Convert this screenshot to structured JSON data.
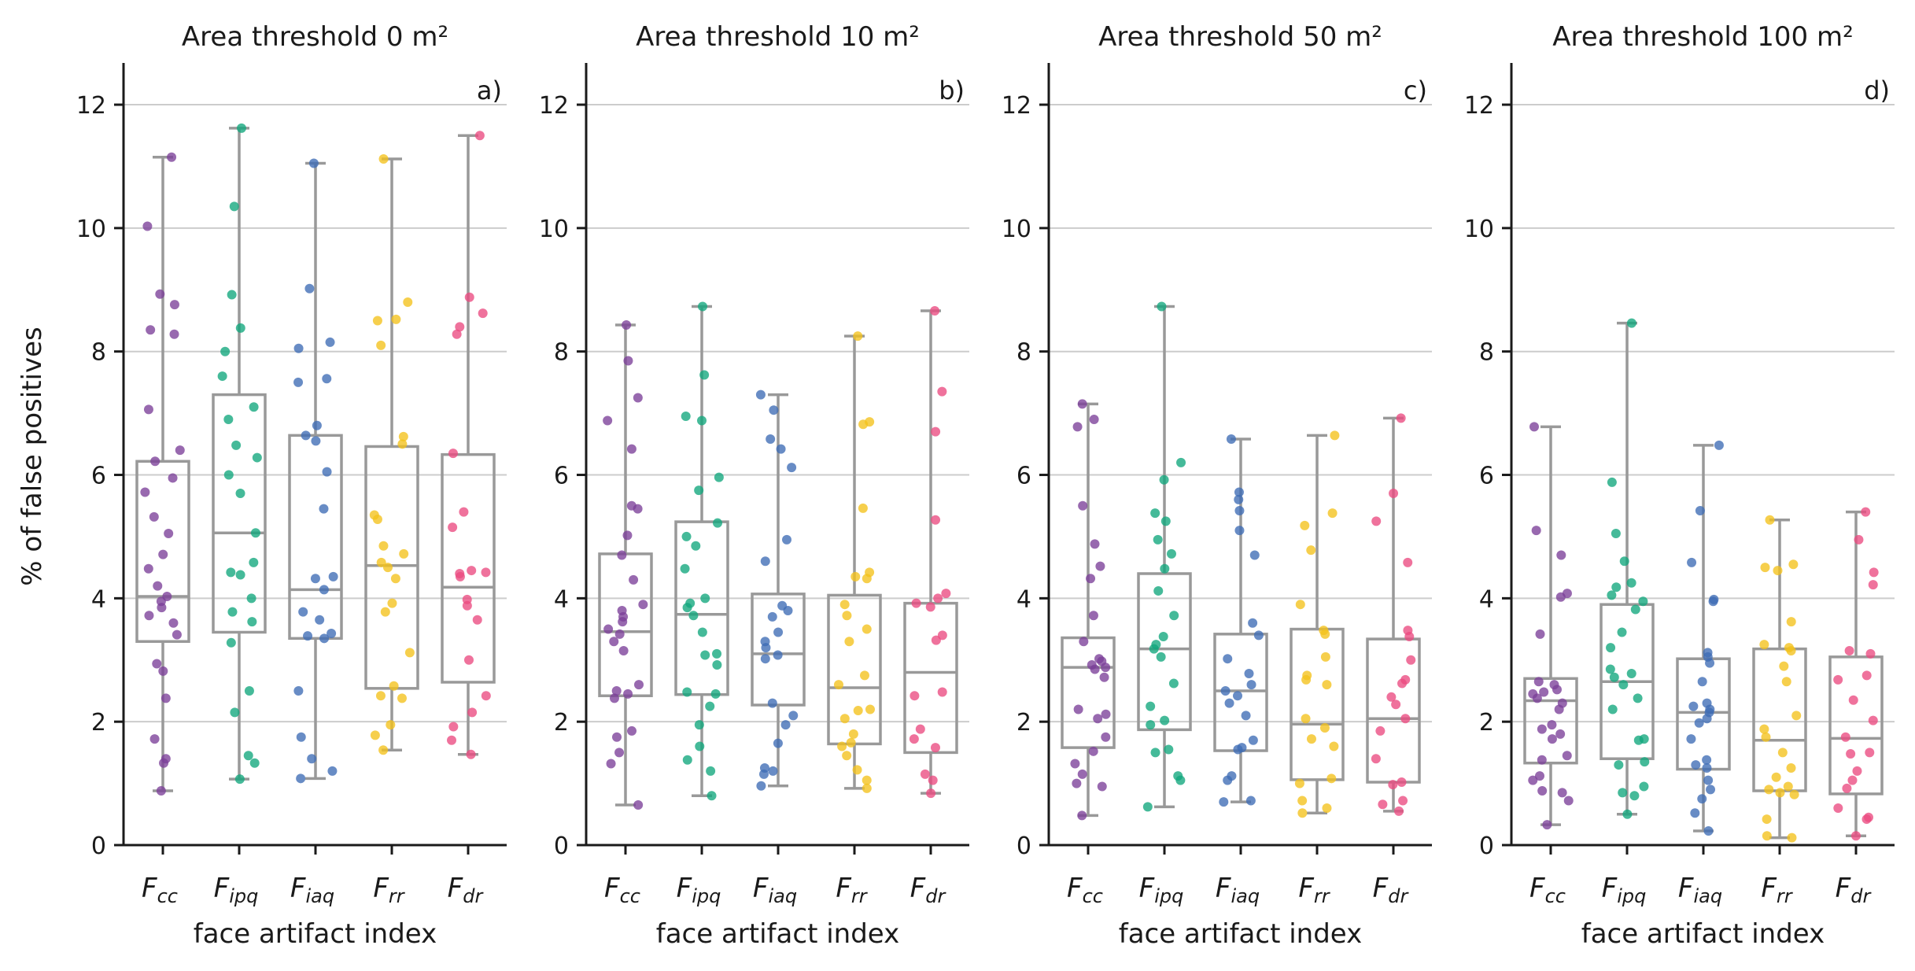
{
  "colors": {
    "Fcc": "#7b3f99",
    "Fipq": "#11a77c",
    "Fiaq": "#3d6cb5",
    "Frr": "#f3c11b",
    "Fdr": "#ea4a80",
    "box": "#999999",
    "grid": "#cccccc",
    "axis": "#1a1a1a"
  },
  "figure": {
    "ylabel": "% of false positives",
    "xlabel": "face artifact index",
    "categories": [
      {
        "key": "Fcc",
        "main": "F",
        "sub": "cc"
      },
      {
        "key": "Fipq",
        "main": "F",
        "sub": "ipq"
      },
      {
        "key": "Fiaq",
        "main": "F",
        "sub": "iaq"
      },
      {
        "key": "Frr",
        "main": "F",
        "sub": "rr"
      },
      {
        "key": "Fdr",
        "main": "F",
        "sub": "dr"
      }
    ],
    "ylim": [
      0,
      12.6
    ],
    "yticks": [
      0,
      2,
      4,
      6,
      8,
      10,
      12
    ],
    "grid": "horizontal"
  },
  "chart_data": [
    {
      "type": "box-strip",
      "title": "Area threshold 0 m²",
      "panel": "a)",
      "boxes": [
        {
          "min": 0.88,
          "q1": 3.3,
          "median": 4.03,
          "q3": 6.22,
          "max": 11.15
        },
        {
          "min": 1.07,
          "q1": 3.45,
          "median": 5.06,
          "q3": 7.3,
          "max": 11.62
        },
        {
          "min": 1.08,
          "q1": 3.35,
          "median": 4.14,
          "q3": 6.64,
          "max": 11.05
        },
        {
          "min": 1.54,
          "q1": 2.54,
          "median": 4.53,
          "q3": 6.46,
          "max": 11.12
        },
        {
          "min": 1.47,
          "q1": 2.64,
          "median": 4.18,
          "q3": 6.33,
          "max": 11.5
        }
      ],
      "points": [
        [
          11.15,
          10.03,
          8.93,
          8.76,
          8.35,
          8.28,
          7.06,
          6.4,
          6.22,
          5.95,
          5.72,
          5.32,
          5.05,
          4.71,
          4.48,
          4.2,
          4.03,
          3.95,
          3.85,
          3.72,
          3.6,
          3.41,
          2.94,
          2.82,
          2.38,
          1.72,
          1.4,
          1.33,
          0.88
        ],
        [
          11.62,
          10.35,
          8.92,
          8.38,
          8.0,
          7.6,
          7.1,
          6.9,
          6.48,
          6.28,
          6.0,
          5.7,
          5.06,
          4.58,
          4.42,
          4.38,
          4.0,
          3.78,
          3.62,
          3.28,
          2.5,
          2.15,
          1.45,
          1.33,
          1.07
        ],
        [
          11.05,
          9.02,
          8.15,
          8.05,
          7.56,
          7.5,
          6.8,
          6.64,
          6.55,
          6.05,
          5.45,
          4.35,
          4.32,
          4.14,
          3.78,
          3.65,
          3.43,
          3.39,
          3.35,
          2.5,
          1.75,
          1.4,
          1.2,
          1.08
        ],
        [
          11.12,
          8.8,
          8.52,
          8.5,
          8.1,
          6.62,
          6.5,
          5.35,
          5.28,
          4.85,
          4.72,
          4.58,
          4.5,
          4.32,
          3.92,
          3.78,
          3.12,
          2.58,
          2.42,
          2.38,
          1.95,
          1.78,
          1.54
        ],
        [
          11.5,
          8.88,
          8.62,
          8.4,
          8.28,
          6.35,
          5.4,
          5.15,
          4.45,
          4.4,
          4.42,
          4.35,
          3.98,
          3.88,
          3.65,
          3.0,
          2.42,
          2.15,
          1.92,
          1.7,
          1.47
        ]
      ]
    },
    {
      "type": "box-strip",
      "title": "Area threshold 10 m²",
      "panel": "b)",
      "boxes": [
        {
          "min": 0.65,
          "q1": 2.42,
          "median": 3.46,
          "q3": 4.72,
          "max": 8.43
        },
        {
          "min": 0.8,
          "q1": 2.44,
          "median": 3.74,
          "q3": 5.24,
          "max": 8.73
        },
        {
          "min": 0.96,
          "q1": 2.27,
          "median": 3.1,
          "q3": 4.07,
          "max": 7.3
        },
        {
          "min": 0.92,
          "q1": 1.64,
          "median": 2.55,
          "q3": 4.05,
          "max": 8.25
        },
        {
          "min": 0.84,
          "q1": 1.5,
          "median": 2.8,
          "q3": 3.92,
          "max": 8.66
        }
      ],
      "points": [
        [
          8.43,
          7.85,
          7.25,
          6.88,
          6.42,
          5.5,
          5.45,
          5.02,
          4.7,
          4.3,
          3.9,
          3.8,
          3.7,
          3.62,
          3.5,
          3.42,
          3.3,
          3.15,
          2.6,
          2.5,
          2.45,
          2.38,
          1.85,
          1.75,
          1.5,
          1.32,
          0.65
        ],
        [
          8.73,
          7.62,
          6.95,
          6.88,
          5.96,
          5.75,
          5.22,
          5.0,
          4.85,
          4.48,
          4.0,
          3.92,
          3.85,
          3.72,
          3.45,
          3.1,
          3.08,
          2.92,
          2.48,
          2.45,
          2.25,
          1.95,
          1.6,
          1.38,
          1.2,
          0.8
        ],
        [
          7.3,
          7.05,
          6.58,
          6.42,
          6.12,
          4.95,
          4.6,
          3.88,
          3.8,
          3.7,
          3.45,
          3.3,
          3.2,
          3.08,
          3.02,
          2.3,
          2.1,
          1.95,
          1.65,
          1.25,
          1.2,
          1.15,
          0.96
        ],
        [
          8.25,
          6.86,
          6.82,
          5.46,
          4.35,
          4.32,
          4.42,
          3.9,
          3.72,
          3.5,
          3.3,
          2.75,
          2.6,
          2.2,
          2.18,
          2.05,
          1.8,
          1.66,
          1.6,
          1.45,
          1.22,
          1.05,
          0.92
        ],
        [
          8.66,
          7.35,
          6.7,
          5.27,
          4.08,
          4.0,
          3.92,
          3.86,
          3.4,
          3.32,
          2.48,
          2.42,
          1.88,
          1.72,
          1.58,
          1.15,
          1.05,
          0.84
        ]
      ]
    },
    {
      "type": "box-strip",
      "title": "Area threshold 50 m²",
      "panel": "c)",
      "boxes": [
        {
          "min": 0.48,
          "q1": 1.58,
          "median": 2.88,
          "q3": 3.36,
          "max": 7.15
        },
        {
          "min": 0.62,
          "q1": 1.87,
          "median": 3.18,
          "q3": 4.4,
          "max": 8.73
        },
        {
          "min": 0.7,
          "q1": 1.53,
          "median": 2.5,
          "q3": 3.42,
          "max": 6.58
        },
        {
          "min": 0.52,
          "q1": 1.06,
          "median": 1.96,
          "q3": 3.5,
          "max": 6.64
        },
        {
          "min": 0.55,
          "q1": 1.02,
          "median": 2.05,
          "q3": 3.34,
          "max": 6.92
        }
      ],
      "points": [
        [
          7.15,
          6.9,
          6.78,
          5.5,
          4.88,
          4.52,
          4.32,
          3.72,
          3.3,
          3.02,
          2.98,
          2.92,
          2.88,
          2.85,
          2.72,
          2.2,
          2.12,
          2.05,
          1.75,
          1.52,
          1.32,
          1.15,
          1.0,
          0.95,
          0.48
        ],
        [
          8.73,
          6.2,
          5.92,
          5.38,
          5.25,
          4.95,
          4.72,
          4.48,
          4.12,
          3.72,
          3.38,
          3.25,
          3.18,
          3.05,
          2.62,
          2.25,
          2.02,
          1.95,
          1.55,
          1.5,
          1.12,
          1.05,
          0.62
        ],
        [
          6.58,
          5.72,
          5.6,
          5.42,
          5.1,
          4.7,
          3.6,
          3.4,
          3.02,
          2.78,
          2.6,
          2.5,
          2.42,
          2.3,
          2.1,
          1.7,
          1.58,
          1.55,
          1.12,
          1.05,
          0.72,
          0.7
        ],
        [
          6.64,
          5.38,
          5.18,
          4.78,
          3.9,
          3.48,
          3.42,
          3.05,
          2.75,
          2.68,
          2.6,
          2.05,
          1.9,
          1.72,
          1.6,
          1.08,
          1.0,
          0.72,
          0.6,
          0.52
        ],
        [
          6.92,
          5.7,
          5.25,
          4.58,
          3.48,
          3.38,
          3.0,
          2.68,
          2.62,
          2.4,
          2.28,
          2.05,
          1.85,
          1.4,
          1.02,
          0.98,
          0.72,
          0.66,
          0.55
        ]
      ]
    },
    {
      "type": "box-strip",
      "title": "Area threshold 100 m²",
      "panel": "d)",
      "boxes": [
        {
          "min": 0.33,
          "q1": 1.33,
          "median": 2.34,
          "q3": 2.7,
          "max": 6.78
        },
        {
          "min": 0.5,
          "q1": 1.4,
          "median": 2.65,
          "q3": 3.9,
          "max": 8.46
        },
        {
          "min": 0.23,
          "q1": 1.23,
          "median": 2.15,
          "q3": 3.02,
          "max": 6.48
        },
        {
          "min": 0.12,
          "q1": 0.88,
          "median": 1.7,
          "q3": 3.18,
          "max": 5.27
        },
        {
          "min": 0.15,
          "q1": 0.83,
          "median": 1.73,
          "q3": 3.05,
          "max": 5.4
        }
      ],
      "points": [
        [
          6.78,
          5.1,
          4.7,
          4.08,
          4.02,
          3.42,
          2.65,
          2.6,
          2.52,
          2.48,
          2.45,
          2.38,
          2.3,
          2.2,
          1.95,
          1.88,
          1.8,
          1.72,
          1.45,
          1.38,
          1.12,
          1.05,
          0.88,
          0.85,
          0.72,
          0.33
        ],
        [
          8.46,
          5.88,
          5.05,
          4.6,
          4.25,
          4.18,
          4.05,
          3.95,
          3.82,
          3.45,
          3.2,
          2.85,
          2.78,
          2.72,
          2.6,
          2.38,
          2.2,
          1.72,
          1.7,
          1.35,
          1.3,
          0.95,
          0.85,
          0.8,
          0.5
        ],
        [
          6.48,
          5.42,
          4.58,
          3.98,
          3.95,
          3.12,
          3.05,
          2.95,
          2.65,
          2.3,
          2.25,
          2.2,
          2.15,
          2.05,
          1.98,
          1.72,
          1.38,
          1.3,
          1.25,
          1.05,
          0.9,
          0.75,
          0.52,
          0.23
        ],
        [
          5.27,
          4.55,
          4.5,
          4.45,
          3.62,
          3.25,
          3.2,
          3.15,
          2.9,
          2.65,
          2.1,
          1.88,
          1.75,
          1.5,
          1.25,
          1.1,
          0.95,
          0.9,
          0.85,
          0.82,
          0.42,
          0.15,
          0.12
        ],
        [
          5.4,
          4.95,
          4.42,
          4.22,
          3.15,
          3.1,
          2.75,
          2.68,
          2.35,
          2.02,
          1.75,
          1.5,
          1.48,
          1.2,
          1.05,
          0.92,
          0.6,
          0.45,
          0.42,
          0.15
        ]
      ]
    }
  ]
}
